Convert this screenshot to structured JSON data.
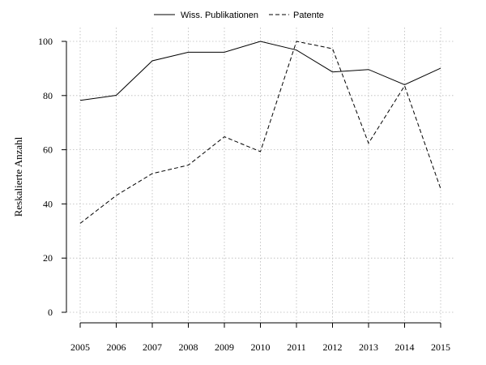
{
  "chart_data": {
    "type": "line",
    "title": "",
    "xlabel": "",
    "ylabel": "Reskalierte Anzahl",
    "x": [
      2005,
      2006,
      2007,
      2008,
      2009,
      2010,
      2011,
      2012,
      2013,
      2014,
      2015
    ],
    "ylim": [
      0,
      100
    ],
    "yticks": [
      0,
      20,
      40,
      60,
      80,
      100
    ],
    "grid": true,
    "legend_position": "top",
    "series": [
      {
        "name": "Wiss. Publikationen",
        "line_style": "solid",
        "values": [
          78.2,
          80.1,
          92.8,
          96.0,
          96.0,
          100.0,
          96.8,
          88.7,
          89.6,
          84.0,
          90.1
        ]
      },
      {
        "name": "Patente",
        "line_style": "dashed",
        "values": [
          32.8,
          43.1,
          51.2,
          54.3,
          64.8,
          59.3,
          100.0,
          97.3,
          62.4,
          83.6,
          45.6
        ]
      }
    ]
  }
}
